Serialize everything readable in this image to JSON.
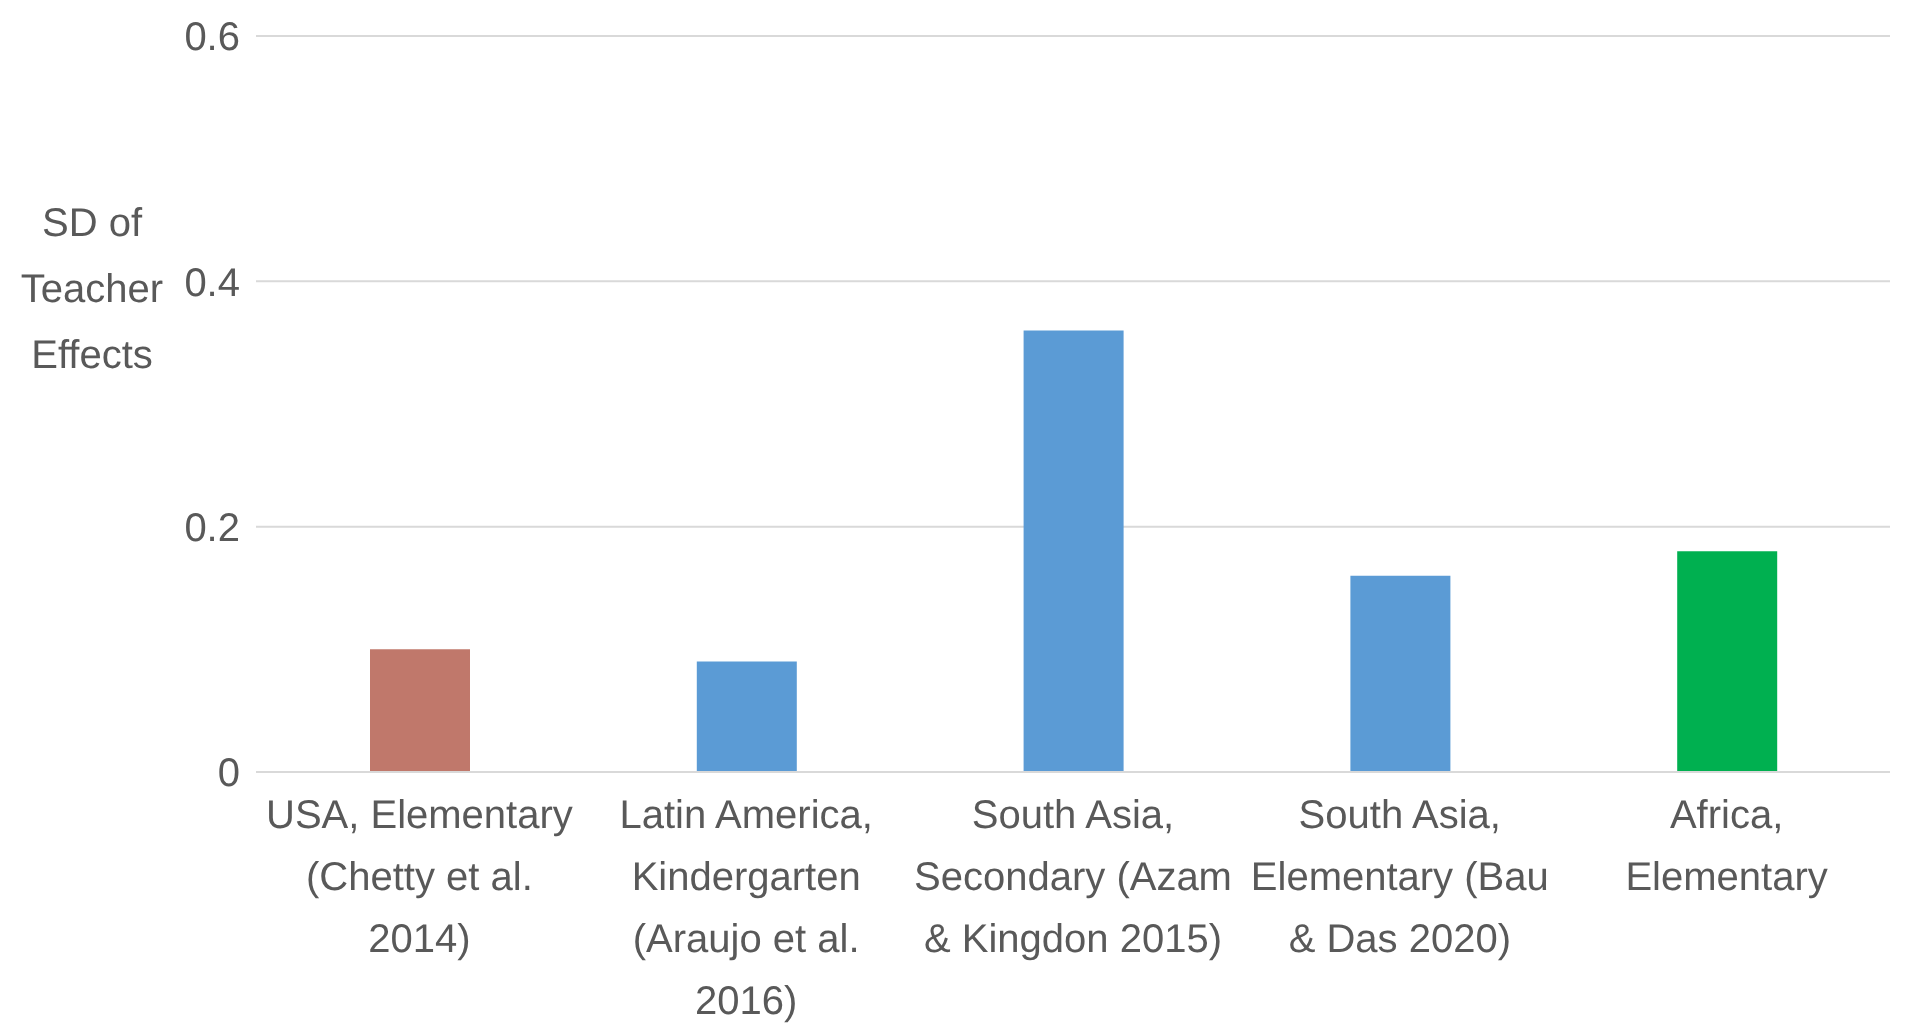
{
  "chart_data": {
    "type": "bar",
    "ylabel": "SD of Teacher Effects",
    "categories": [
      "USA, Elementary (Chetty et al. 2014)",
      "Latin America, Kindergarten (Araujo et al. 2016)",
      "South Asia, Secondary (Azam & Kingdon 2015)",
      "South Asia, Elementary (Bau & Das 2020)",
      "Africa, Elementary"
    ],
    "values": [
      0.1,
      0.09,
      0.36,
      0.16,
      0.18
    ],
    "colors": [
      "#c0786b",
      "#5b9bd5",
      "#5b9bd5",
      "#5b9bd5",
      "#00b050"
    ],
    "ylim": [
      0,
      0.6
    ],
    "yticks": [
      0,
      0.2,
      0.4,
      0.6
    ],
    "grid": "y"
  }
}
